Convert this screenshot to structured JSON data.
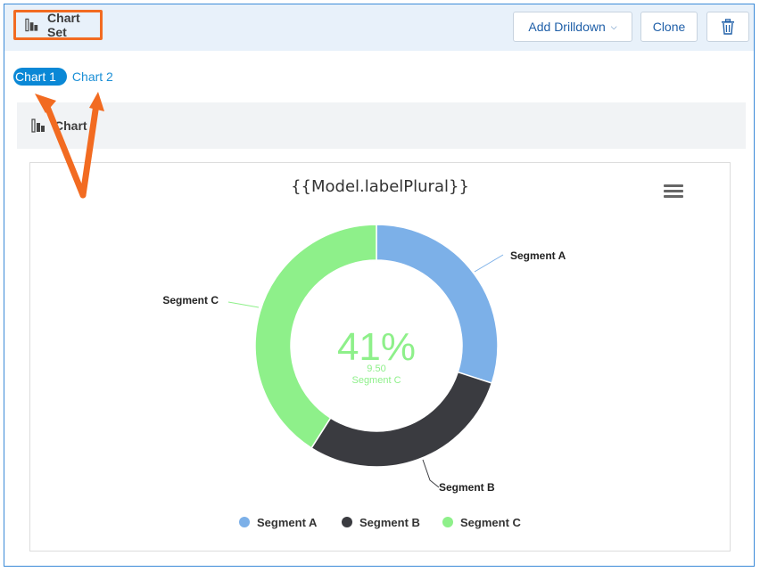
{
  "header": {
    "title": "Chart Set"
  },
  "toolbar": {
    "drilldown_label": "Add Drilldown",
    "clone_label": "Clone"
  },
  "tabs": [
    {
      "label": "Chart 1",
      "active": true
    },
    {
      "label": "Chart 2",
      "active": false
    }
  ],
  "chart_section": {
    "label": "Chart"
  },
  "chart_data": {
    "type": "pie",
    "title": "{{Model.labelPlural}}",
    "categories": [
      "Segment A",
      "Segment B",
      "Segment C"
    ],
    "values": [
      30,
      29,
      41
    ],
    "colors": [
      "#7cb0e8",
      "#3a3b40",
      "#8ef08a"
    ],
    "center_text": {
      "percent": "41%",
      "value": "9.50",
      "label": "Segment C"
    },
    "legend": "bottom",
    "donut": true
  },
  "colors": {
    "accent": "#1b8fd6",
    "highlight": "#f26b21",
    "topbar": "#e8f1fa"
  }
}
